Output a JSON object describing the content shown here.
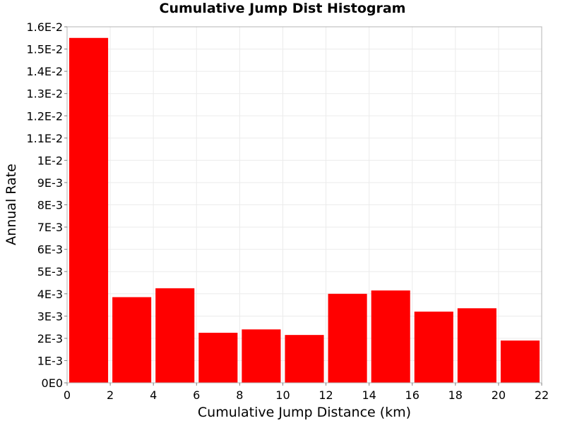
{
  "chart_data": {
    "type": "bar",
    "title": "Cumulative Jump Dist Histogram",
    "xlabel": "Cumulative Jump Distance (km)",
    "ylabel": "Annual Rate",
    "xlim": [
      0,
      22
    ],
    "ylim": [
      0,
      0.016
    ],
    "x_ticks": [
      0,
      2,
      4,
      6,
      8,
      10,
      12,
      14,
      16,
      18,
      20,
      22
    ],
    "x_tick_labels": [
      "0",
      "2",
      "4",
      "6",
      "8",
      "10",
      "12",
      "14",
      "16",
      "18",
      "20",
      "22"
    ],
    "y_ticks": [
      0,
      0.001,
      0.002,
      0.003,
      0.004,
      0.005,
      0.006,
      0.007,
      0.008,
      0.009,
      0.01,
      0.011,
      0.012,
      0.013,
      0.014,
      0.015,
      0.016
    ],
    "y_tick_labels": [
      "0E0",
      "1E-3",
      "2E-3",
      "3E-3",
      "4E-3",
      "5E-3",
      "6E-3",
      "7E-3",
      "8E-3",
      "9E-3",
      "1E-2",
      "1.1E-2",
      "1.2E-2",
      "1.3E-2",
      "1.4E-2",
      "1.5E-2",
      "1.6E-2"
    ],
    "bin_width": 2,
    "x": [
      1,
      3,
      5,
      7,
      9,
      11,
      13,
      15,
      17,
      19,
      21
    ],
    "values": [
      0.0155,
      0.00385,
      0.00425,
      0.00225,
      0.0024,
      0.00215,
      0.004,
      0.00415,
      0.0032,
      0.00335,
      0.0019
    ],
    "bar_color": "#ff0000",
    "grid": true,
    "grid_color": "#ebebeb",
    "plot_border_color": "#b4b4b4"
  }
}
